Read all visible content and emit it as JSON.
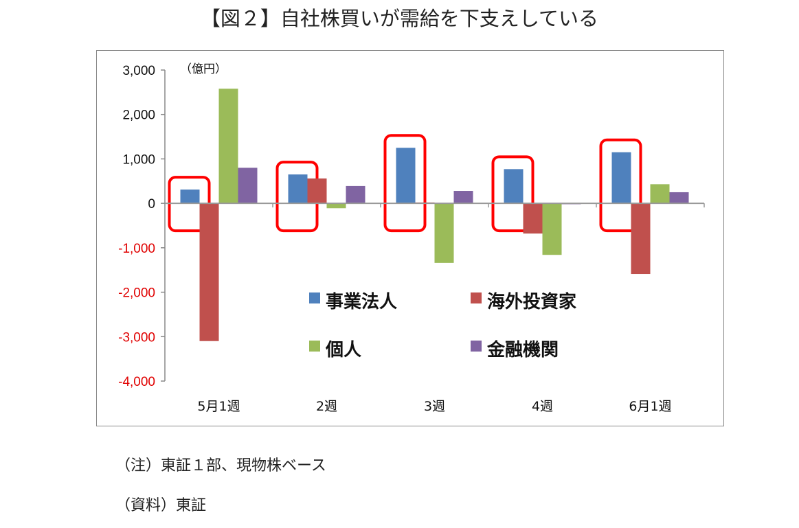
{
  "title": "【図２】自社株買いが需給を下支えしている",
  "notes": [
    "（注）東証１部、現物株ベース",
    "（資料）東証"
  ],
  "chart_data": {
    "type": "bar",
    "unit_label": "（億円）",
    "categories": [
      "5月1週",
      "2週",
      "3週",
      "4週",
      "6月1週"
    ],
    "series": [
      {
        "name": "事業法人",
        "color": "#4f81bd",
        "values": [
          310,
          650,
          1250,
          770,
          1150
        ]
      },
      {
        "name": "海外投資家",
        "color": "#c0504d",
        "values": [
          -3100,
          560,
          20,
          -680,
          -1590
        ]
      },
      {
        "name": "個人",
        "color": "#9bbb59",
        "values": [
          2580,
          -110,
          -1340,
          -1160,
          430
        ]
      },
      {
        "name": "金融機関",
        "color": "#8064a2",
        "values": [
          800,
          390,
          280,
          -20,
          250
        ]
      }
    ],
    "ylim": [
      -4000,
      3000
    ],
    "yticks": [
      3000,
      2000,
      1000,
      0,
      -1000,
      -2000,
      -3000,
      -4000
    ],
    "ytick_labels": [
      "3,000",
      "2,000",
      "1,000",
      "0",
      "-1,000",
      "-2,000",
      "-3,000",
      "-4,000"
    ],
    "negative_tick_color": "#e00000",
    "highlight_series": "事業法人",
    "highlight_color": "#ff0000",
    "legend_position": "bottom-center-inside"
  }
}
